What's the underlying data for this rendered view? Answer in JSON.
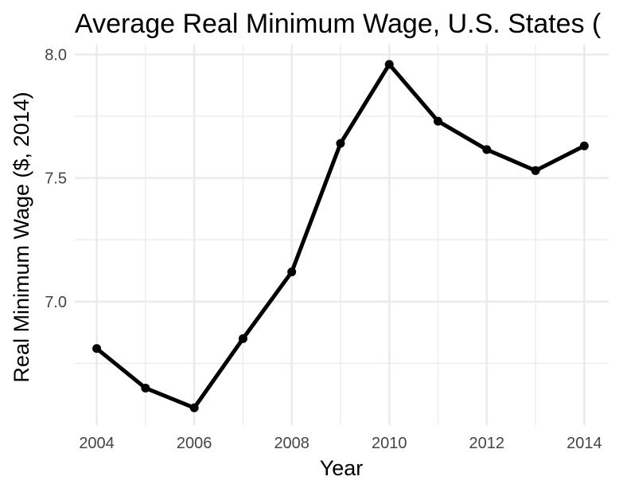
{
  "chart_data": {
    "type": "line",
    "title": "Average Real Minimum Wage, U.S. States (",
    "xlabel": "Year",
    "ylabel": "Real Minimum Wage ($, 2014)",
    "x": [
      2004,
      2005,
      2006,
      2007,
      2008,
      2009,
      2010,
      2011,
      2012,
      2013,
      2014
    ],
    "series": [
      {
        "values": [
          6.81,
          6.65,
          6.57,
          6.85,
          7.12,
          7.64,
          7.96,
          7.73,
          7.615,
          7.53,
          7.63
        ]
      }
    ],
    "xlim": [
      2003.55,
      2014.5
    ],
    "ylim": [
      6.5,
      8.04
    ],
    "x_ticks": [
      "2004",
      "2006",
      "2008",
      "2010",
      "2012",
      "2014"
    ],
    "y_ticks": [
      "7.0",
      "7.5",
      "8.0"
    ],
    "grid": true,
    "legend": "none",
    "colors": {
      "line": "#000000",
      "grid": "#ebebeb",
      "background": "#ffffff"
    }
  }
}
